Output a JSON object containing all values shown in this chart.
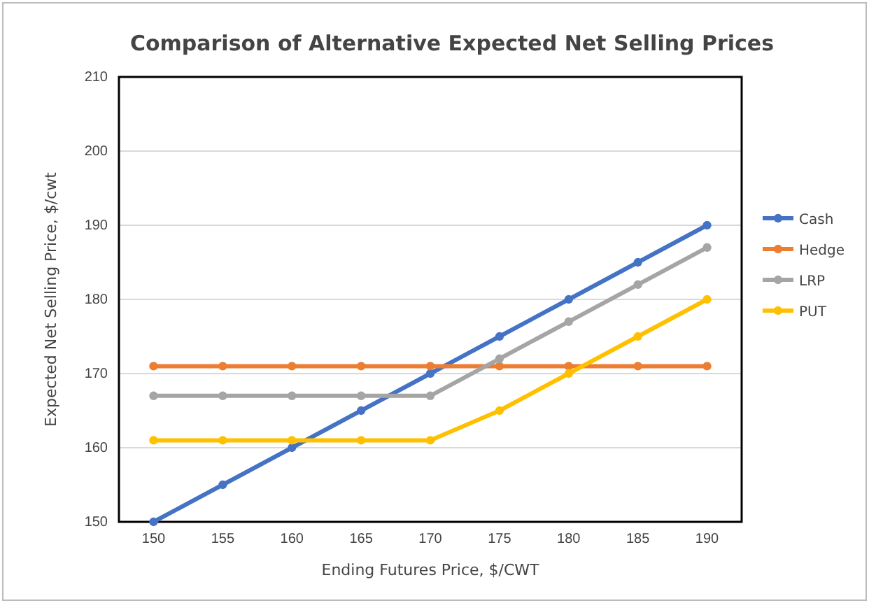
{
  "chart_data": {
    "type": "line",
    "title": "Comparison of Alternative Expected Net Selling Prices",
    "xlabel": "Ending Futures Price, $/CWT",
    "ylabel": "Expected Net Selling Price, $/cwt",
    "categories": [
      "150",
      "155",
      "160",
      "165",
      "170",
      "175",
      "180",
      "185",
      "190"
    ],
    "series": [
      {
        "name": "Cash",
        "color": "#4472c4",
        "values": [
          150,
          155,
          160,
          165,
          170,
          175,
          180,
          185,
          190
        ]
      },
      {
        "name": "Hedge",
        "color": "#ed7d31",
        "values": [
          171,
          171,
          171,
          171,
          171,
          171,
          171,
          171,
          171
        ]
      },
      {
        "name": "LRP",
        "color": "#a5a5a5",
        "values": [
          167,
          167,
          167,
          167,
          167,
          172,
          177,
          182,
          187
        ]
      },
      {
        "name": "PUT",
        "color": "#ffc000",
        "values": [
          161,
          161,
          161,
          161,
          161,
          165,
          170,
          175,
          180
        ]
      }
    ],
    "ylim": [
      150,
      210
    ],
    "yticks": [
      150,
      160,
      170,
      180,
      190,
      200,
      210
    ],
    "grid": "y",
    "legend": "right",
    "marker": "circle",
    "line_style": "solid"
  }
}
